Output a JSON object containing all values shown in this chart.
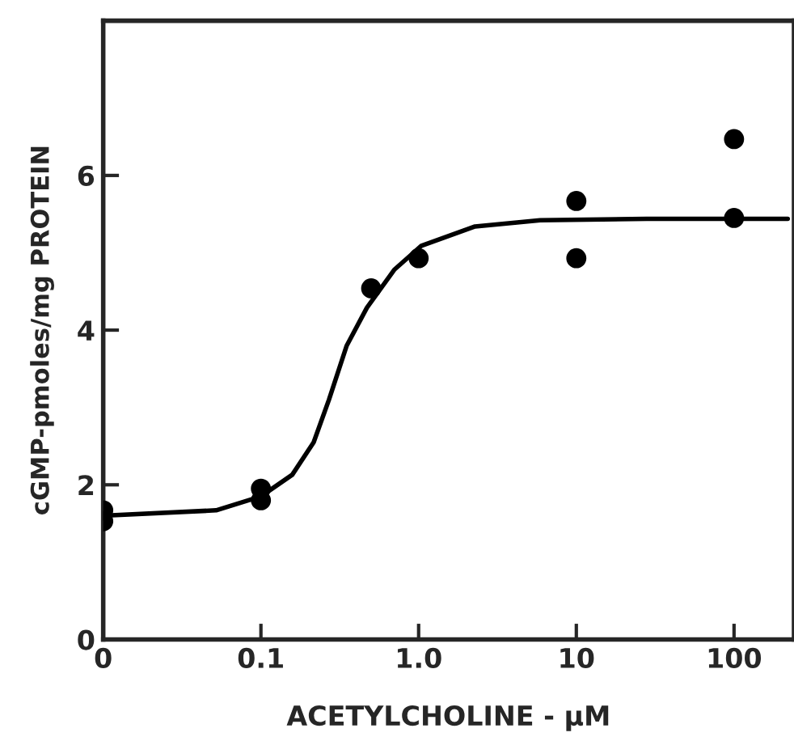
{
  "chart_data": {
    "type": "scatter",
    "xlabel": "ACETYLCHOLINE - µM",
    "ylabel": "cGMP-pmoles/mg PROTEIN",
    "log": "x",
    "xlim": [
      0.01,
      240
    ],
    "xticks": [
      {
        "value": 0.01,
        "label": "0"
      },
      0.1,
      {
        "value": 1,
        "label": "1.0"
      },
      10,
      100
    ],
    "ylim": [
      0,
      8
    ],
    "yticks": [
      0,
      2,
      4,
      6
    ],
    "grid": false,
    "legend": false,
    "marker": "circle",
    "series": [
      {
        "color": "#000000",
        "x": [
          0.01,
          0.01,
          0.1,
          0.1,
          0.5,
          1,
          10,
          10,
          100,
          100
        ],
        "values": [
          1.67,
          1.53,
          1.95,
          1.8,
          4.54,
          4.93,
          5.67,
          4.93,
          6.47,
          5.45
        ]
      },
      {
        "type": "line",
        "color": "#000000",
        "marker": "none",
        "line_style": "solid",
        "x": [
          0.01,
          0.052,
          0.1,
          0.158,
          0.216,
          0.27,
          0.35,
          0.47,
          0.7,
          1.04,
          2.28,
          5.9,
          28,
          219
        ],
        "values": [
          1.6,
          1.67,
          1.85,
          2.13,
          2.55,
          3.1,
          3.8,
          4.29,
          4.78,
          5.09,
          5.34,
          5.42,
          5.44,
          5.44
        ]
      }
    ]
  }
}
